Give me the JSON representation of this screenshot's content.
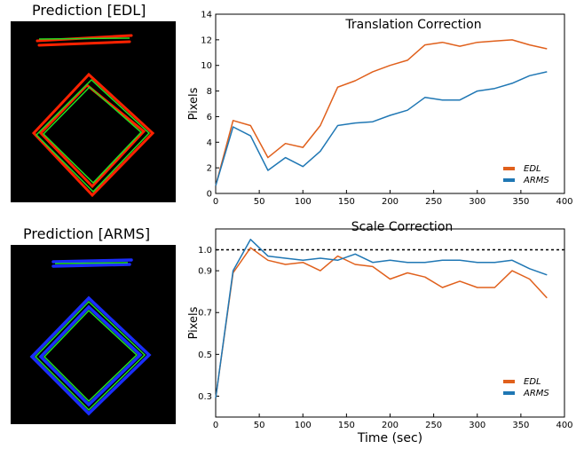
{
  "panels": {
    "edl_title": "Prediction [EDL]",
    "arms_title": "Prediction [ARMS]"
  },
  "colors": {
    "edl": "#e0601c",
    "arms": "#1f77b4",
    "ground_truth": "#22dd22",
    "edl_points": "#ff2200",
    "arms_points": "#1a2eff",
    "background": "#000000"
  },
  "chart_data": [
    {
      "type": "line",
      "title": "Translation Correction",
      "xlabel": "",
      "ylabel": "Pixels",
      "xlim": [
        0,
        400
      ],
      "ylim": [
        0,
        14
      ],
      "xticks": [
        0,
        50,
        100,
        150,
        200,
        250,
        300,
        350,
        400
      ],
      "yticks": [
        0,
        2,
        4,
        6,
        8,
        10,
        12,
        14
      ],
      "legend": "bottom-right",
      "grid": false,
      "x": [
        0,
        20,
        40,
        60,
        80,
        100,
        120,
        140,
        160,
        180,
        200,
        220,
        240,
        260,
        280,
        300,
        320,
        340,
        360,
        380
      ],
      "series": [
        {
          "name": "EDL",
          "values": [
            0.6,
            5.7,
            5.3,
            2.8,
            3.9,
            3.6,
            5.3,
            8.3,
            8.8,
            9.5,
            10.0,
            10.4,
            11.6,
            11.8,
            11.5,
            11.8,
            11.9,
            12.0,
            11.6,
            11.3
          ]
        },
        {
          "name": "ARMS",
          "values": [
            0.6,
            5.2,
            4.5,
            1.8,
            2.8,
            2.1,
            3.3,
            5.3,
            5.5,
            5.6,
            6.1,
            6.5,
            7.5,
            7.3,
            7.3,
            8.0,
            8.2,
            8.6,
            9.2,
            9.5
          ]
        }
      ]
    },
    {
      "type": "line",
      "title": "Scale Correction",
      "xlabel": "Time (sec)",
      "ylabel": "Pixels",
      "xlim": [
        0,
        400
      ],
      "ylim": [
        0.2,
        1.1
      ],
      "xticks": [
        0,
        50,
        100,
        150,
        200,
        250,
        300,
        350,
        400
      ],
      "yticks": [
        0.3,
        0.5,
        0.7,
        0.9,
        1.0
      ],
      "ytick_labels": [
        "0.3",
        "0.5",
        "0.7",
        "0.9",
        "1.0"
      ],
      "reference_line": 1.0,
      "legend": "bottom-right",
      "grid": false,
      "x": [
        0,
        20,
        40,
        60,
        80,
        100,
        120,
        140,
        160,
        180,
        200,
        220,
        240,
        260,
        280,
        300,
        320,
        340,
        360,
        380
      ],
      "series": [
        {
          "name": "EDL",
          "values": [
            0.29,
            0.89,
            1.01,
            0.95,
            0.93,
            0.94,
            0.9,
            0.97,
            0.93,
            0.92,
            0.86,
            0.89,
            0.87,
            0.82,
            0.85,
            0.82,
            0.82,
            0.9,
            0.86,
            0.77
          ]
        },
        {
          "name": "ARMS",
          "values": [
            0.29,
            0.9,
            1.05,
            0.97,
            0.96,
            0.95,
            0.96,
            0.95,
            0.98,
            0.94,
            0.95,
            0.94,
            0.94,
            0.95,
            0.95,
            0.94,
            0.94,
            0.95,
            0.91,
            0.88
          ]
        }
      ]
    }
  ]
}
